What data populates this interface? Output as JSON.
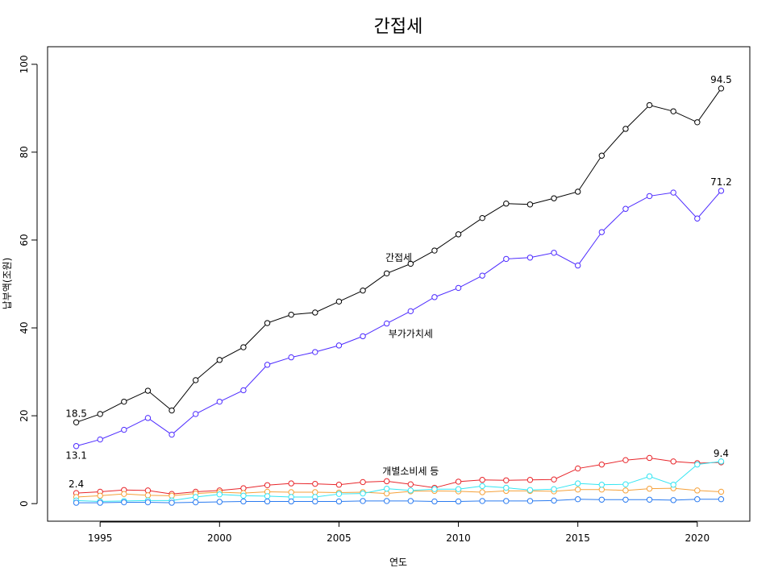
{
  "chart_data": {
    "type": "line",
    "title": "간접세",
    "xlabel": "연도",
    "ylabel": "납부액(조원)",
    "xlim": [
      1992.8,
      2022.2
    ],
    "ylim": [
      -4,
      104
    ],
    "x_ticks": [
      1995,
      2000,
      2005,
      2010,
      2015,
      2020
    ],
    "y_ticks": [
      0,
      20,
      40,
      60,
      80,
      100
    ],
    "grid": false,
    "x": [
      1994,
      1995,
      1996,
      1997,
      1998,
      1999,
      2000,
      2001,
      2002,
      2003,
      2004,
      2005,
      2006,
      2007,
      2008,
      2009,
      2010,
      2011,
      2012,
      2013,
      2014,
      2015,
      2016,
      2017,
      2018,
      2019,
      2020,
      2021
    ],
    "series": [
      {
        "name": "간접세",
        "color": "#000000",
        "values": [
          18.5,
          20.4,
          23.2,
          25.7,
          21.2,
          28.1,
          32.7,
          35.6,
          41.1,
          43.0,
          43.5,
          46.0,
          48.5,
          52.4,
          54.6,
          57.6,
          61.3,
          65.0,
          68.3,
          68.1,
          69.5,
          71.0,
          79.2,
          85.3,
          90.7,
          89.3,
          86.8,
          94.5
        ]
      },
      {
        "name": "부가가치세",
        "color": "#4d2bff",
        "values": [
          13.1,
          14.6,
          16.8,
          19.5,
          15.7,
          20.4,
          23.2,
          25.8,
          31.6,
          33.3,
          34.5,
          36.0,
          38.1,
          41.0,
          43.8,
          47.0,
          49.1,
          51.9,
          55.7,
          56.0,
          57.1,
          54.2,
          61.8,
          67.1,
          70.0,
          70.8,
          64.9,
          71.2
        ]
      },
      {
        "name": "개별소비세 등",
        "color": "#e8262b",
        "values": [
          2.4,
          2.7,
          3.1,
          3.0,
          2.2,
          2.7,
          3.0,
          3.5,
          4.2,
          4.6,
          4.5,
          4.3,
          4.9,
          5.1,
          4.4,
          3.6,
          5.0,
          5.4,
          5.3,
          5.4,
          5.5,
          8.0,
          8.9,
          9.9,
          10.4,
          9.6,
          9.2,
          9.4
        ]
      },
      {
        "color": "#f5a13a",
        "values": [
          1.5,
          1.8,
          2.2,
          1.9,
          1.8,
          2.3,
          2.6,
          2.4,
          2.7,
          2.6,
          2.6,
          2.5,
          2.6,
          2.3,
          2.8,
          2.9,
          2.8,
          2.6,
          2.9,
          2.9,
          2.8,
          3.2,
          3.2,
          3.0,
          3.4,
          3.5,
          3.0,
          2.7
        ]
      },
      {
        "color": "#33e5f2",
        "values": [
          0.7,
          0.5,
          0.6,
          0.7,
          0.7,
          1.5,
          2.1,
          1.8,
          1.7,
          1.5,
          1.5,
          2.2,
          2.3,
          3.4,
          3.0,
          3.3,
          3.3,
          4.0,
          3.6,
          3.1,
          3.3,
          4.6,
          4.3,
          4.4,
          6.2,
          4.3,
          8.9,
          9.6
        ]
      },
      {
        "color": "#2a7bf0",
        "values": [
          0.2,
          0.2,
          0.3,
          0.3,
          0.2,
          0.3,
          0.4,
          0.5,
          0.5,
          0.5,
          0.5,
          0.5,
          0.6,
          0.6,
          0.6,
          0.5,
          0.5,
          0.6,
          0.6,
          0.6,
          0.7,
          1.0,
          0.9,
          0.9,
          0.9,
          0.8,
          1.0,
          1.0
        ]
      }
    ],
    "annotations": [
      {
        "text": "18.5",
        "x": 1994,
        "y": 18.5,
        "pos": "above"
      },
      {
        "text": "13.1",
        "x": 1994,
        "y": 13.1,
        "pos": "below"
      },
      {
        "text": "2.4",
        "x": 1994,
        "y": 2.4,
        "pos": "above"
      },
      {
        "text": "94.5",
        "x": 2021,
        "y": 94.5,
        "pos": "above"
      },
      {
        "text": "71.2",
        "x": 2021,
        "y": 71.2,
        "pos": "above"
      },
      {
        "text": "9.4",
        "x": 2021,
        "y": 9.4,
        "pos": "above"
      },
      {
        "text": "간접세",
        "x": 2007.5,
        "y": 56.0,
        "pos": "center"
      },
      {
        "text": "부가가치세",
        "x": 2008.0,
        "y": 38.6,
        "pos": "center"
      },
      {
        "text": "개별소비세 등",
        "x": 2008.0,
        "y": 7.4,
        "pos": "center"
      }
    ]
  }
}
